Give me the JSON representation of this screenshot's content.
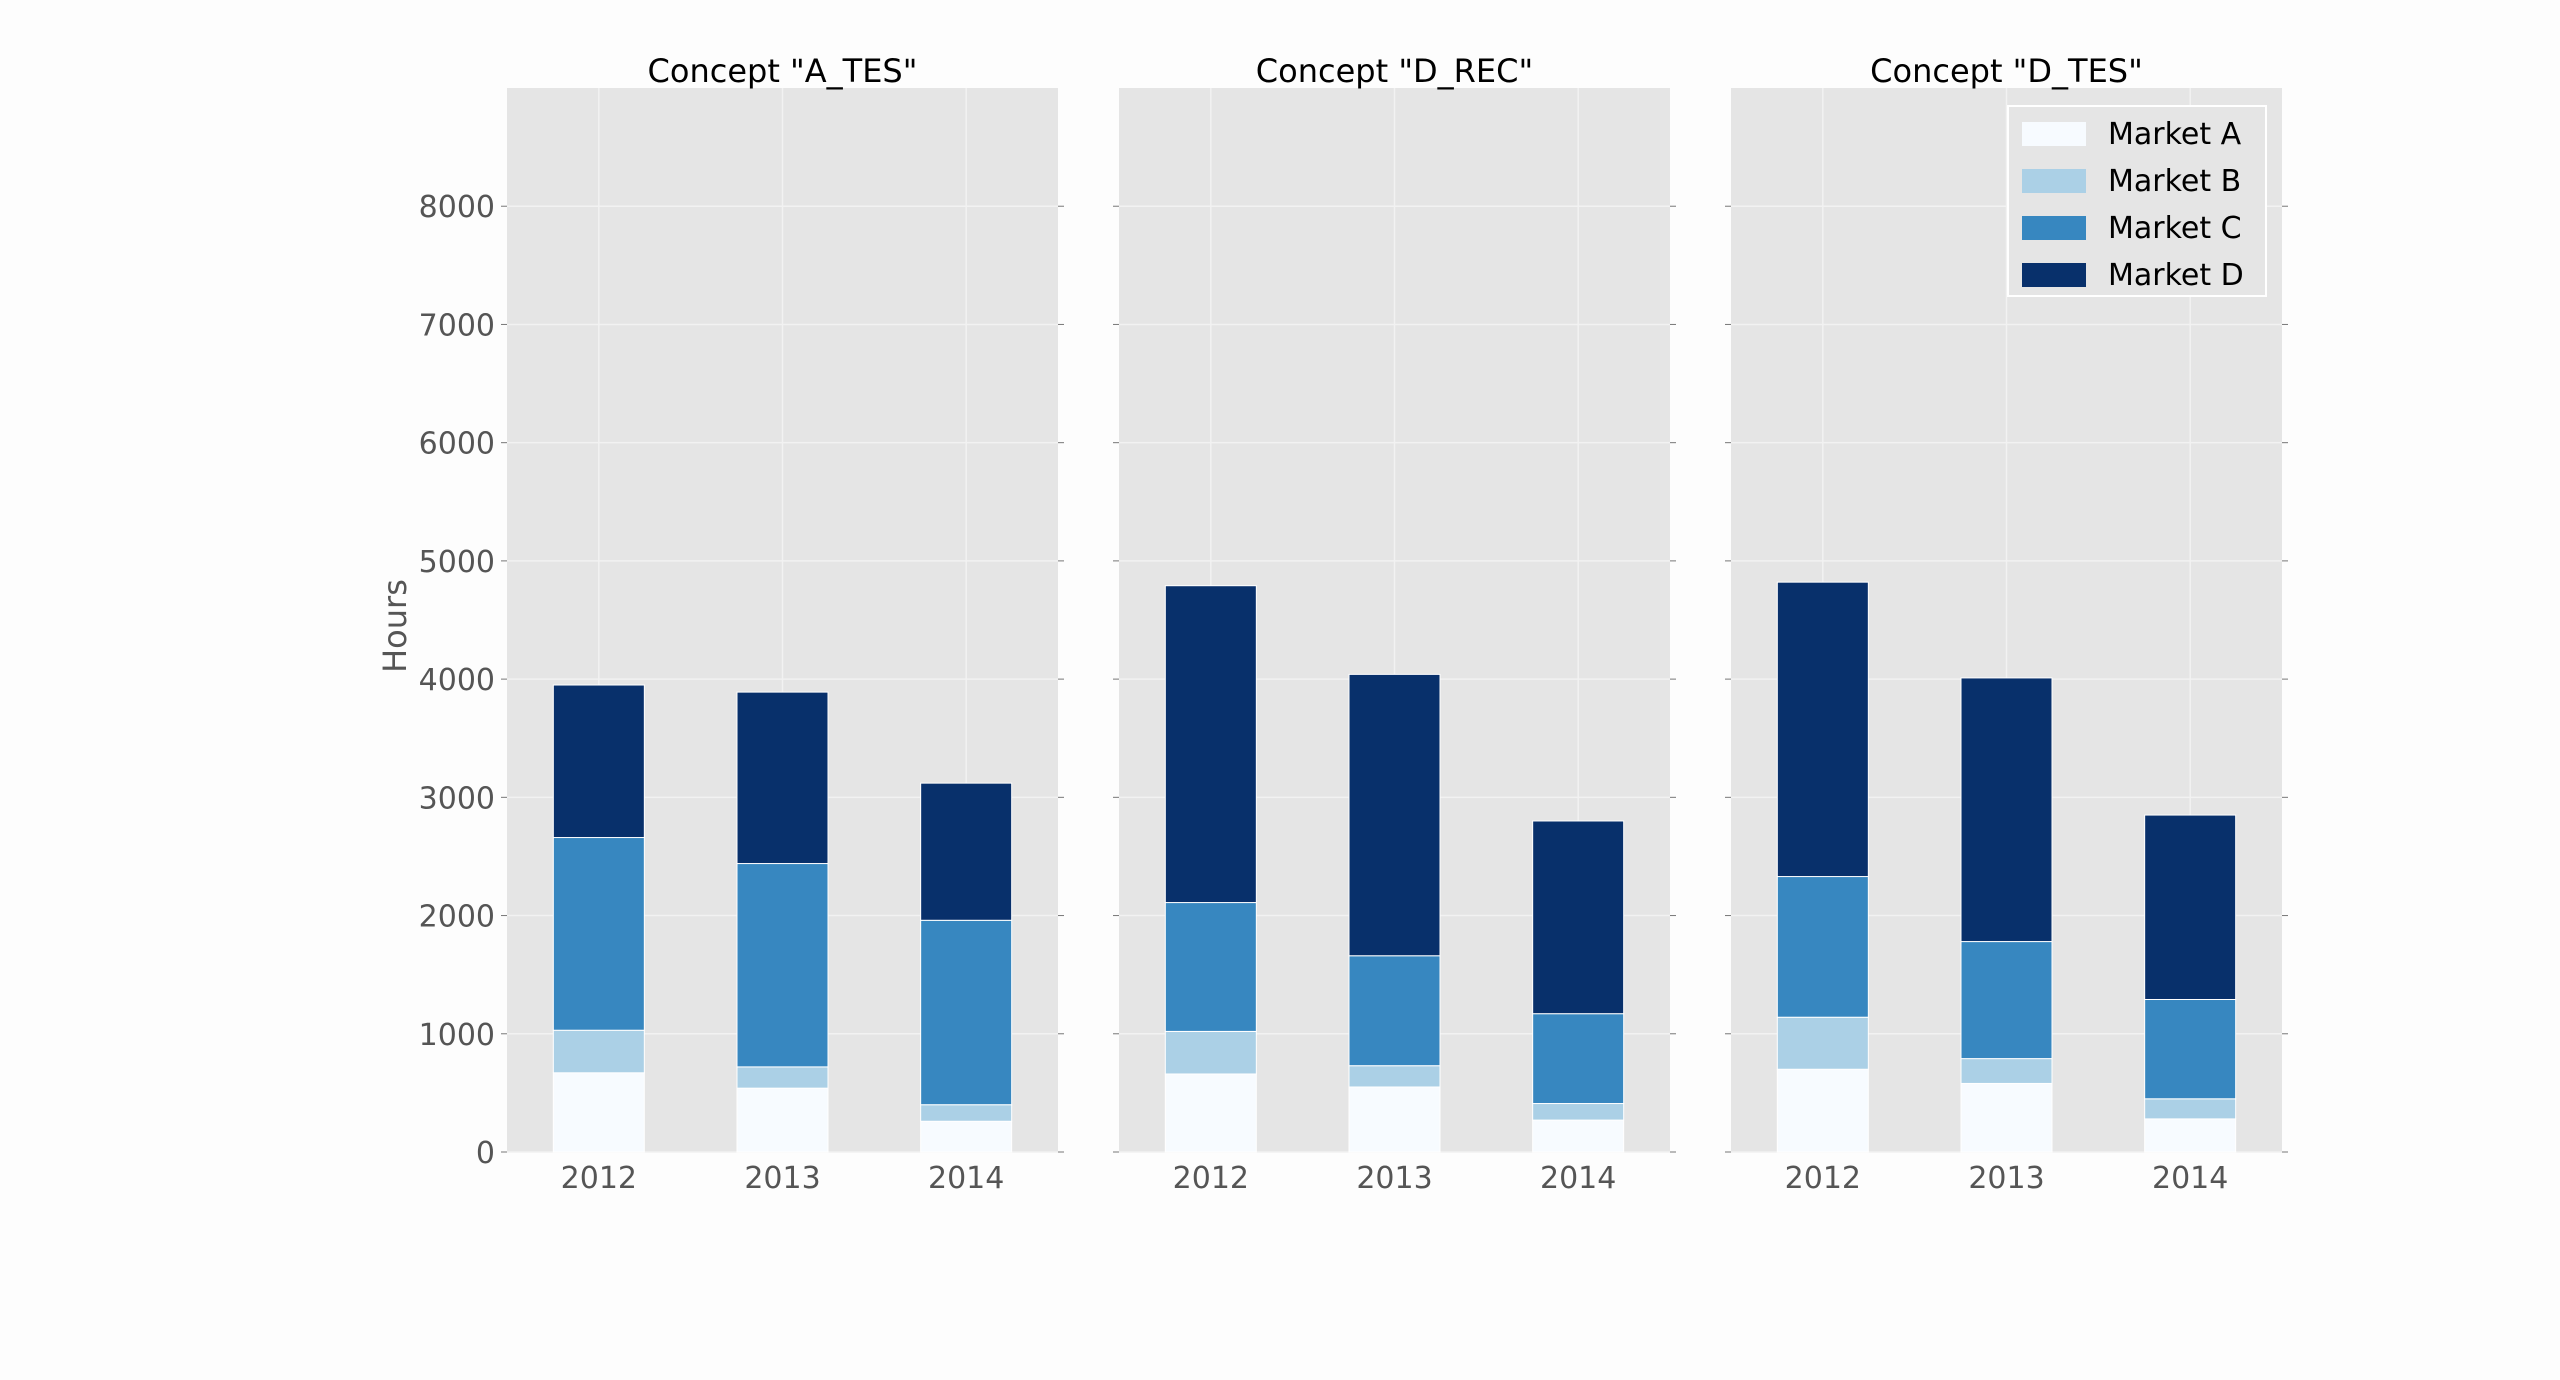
{
  "chart_data": {
    "type": "bar",
    "stacked": true,
    "ylabel": "Hours",
    "ylim": [
      0,
      9000
    ],
    "yticks": [
      0,
      1000,
      2000,
      3000,
      4000,
      5000,
      6000,
      7000,
      8000
    ],
    "grid": true,
    "legend_position": "top-right",
    "categories": [
      "2012",
      "2013",
      "2014"
    ],
    "series_meta": [
      {
        "name": "Market A",
        "color": "#f7fbff"
      },
      {
        "name": "Market B",
        "color": "#abd0e6"
      },
      {
        "name": "Market C",
        "color": "#3787c0"
      },
      {
        "name": "Market D",
        "color": "#08306b"
      }
    ],
    "panels": [
      {
        "title": "Concept \"A_TES\"",
        "series": [
          {
            "name": "Market A",
            "values": [
              670,
              540,
              260
            ]
          },
          {
            "name": "Market B",
            "values": [
              360,
              180,
              140
            ]
          },
          {
            "name": "Market C",
            "values": [
              1630,
              1720,
              1560
            ]
          },
          {
            "name": "Market D",
            "values": [
              1290,
              1450,
              1160
            ]
          }
        ]
      },
      {
        "title": "Concept \"D_REC\"",
        "series": [
          {
            "name": "Market A",
            "values": [
              660,
              550,
              270
            ]
          },
          {
            "name": "Market B",
            "values": [
              360,
              180,
              140
            ]
          },
          {
            "name": "Market C",
            "values": [
              1090,
              930,
              760
            ]
          },
          {
            "name": "Market D",
            "values": [
              2680,
              2380,
              1630
            ]
          }
        ]
      },
      {
        "title": "Concept \"D_TES\"",
        "series": [
          {
            "name": "Market A",
            "values": [
              700,
              580,
              280
            ]
          },
          {
            "name": "Market B",
            "values": [
              440,
              210,
              170
            ]
          },
          {
            "name": "Market C",
            "values": [
              1190,
              990,
              840
            ]
          },
          {
            "name": "Market D",
            "values": [
              2490,
              2230,
              1560
            ]
          }
        ]
      }
    ]
  }
}
